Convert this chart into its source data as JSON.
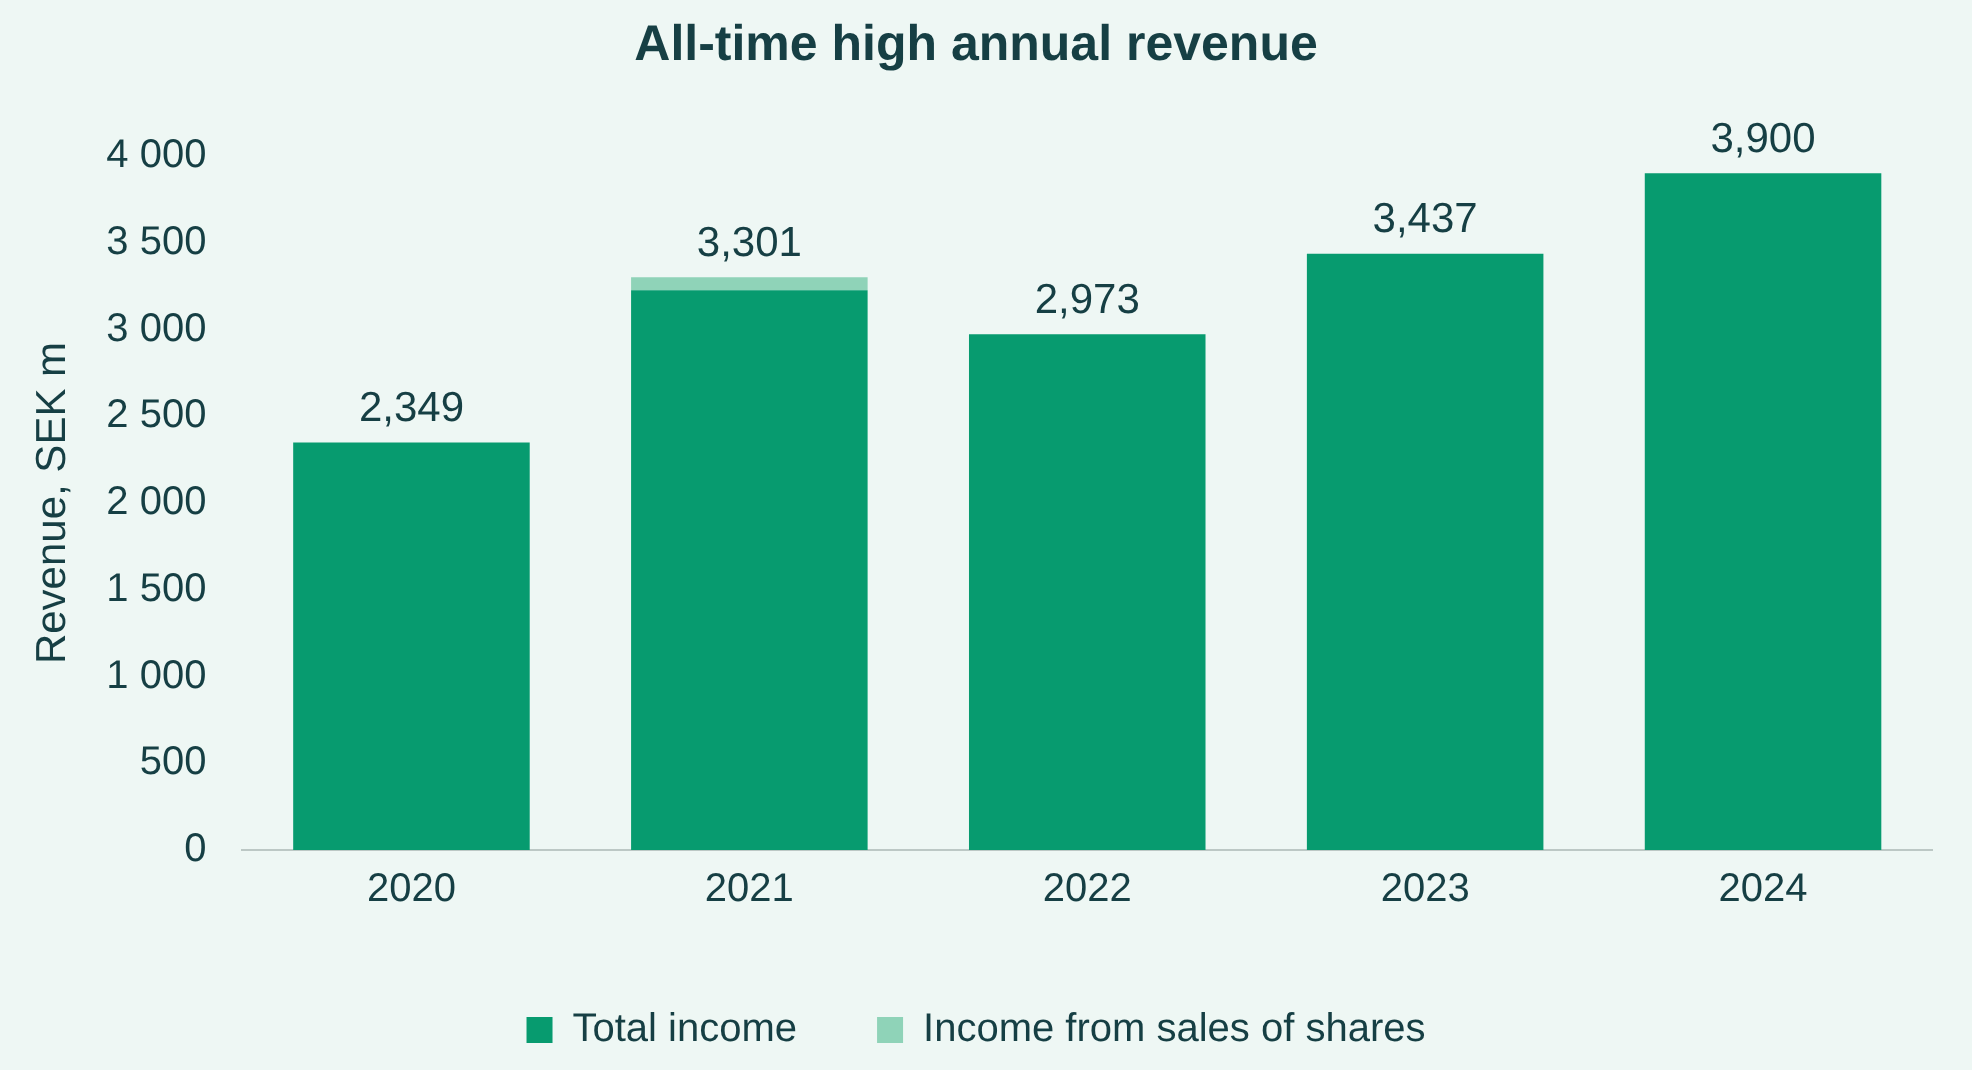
{
  "chart_data": {
    "type": "bar",
    "title": "All-time high annual revenue",
    "ylabel": "Revenue, SEK m",
    "categories": [
      "2020",
      "2021",
      "2022",
      "2023",
      "2024"
    ],
    "series": [
      {
        "name": "Total income",
        "color": "#079b6f",
        "values": [
          2349,
          3226,
          2973,
          3437,
          3900
        ]
      },
      {
        "name": "Income from sales of shares",
        "color": "#8fd3b8",
        "values": [
          null,
          75,
          null,
          null,
          null
        ]
      }
    ],
    "stacked": true,
    "totals": [
      "2,349",
      "3,301",
      "2,973",
      "3,437",
      "3,900"
    ],
    "ylim": [
      0,
      4000
    ],
    "yticks": [
      0,
      500,
      {
        "value": 1000,
        "label": "1 000"
      },
      {
        "value": 1500,
        "label": "1 500"
      },
      {
        "value": 2000,
        "label": "2 000"
      },
      {
        "value": 2500,
        "label": "2 500"
      },
      {
        "value": 3000,
        "label": "3 000"
      },
      {
        "value": 3500,
        "label": "3 500"
      },
      {
        "value": 4000,
        "label": "4 000"
      }
    ],
    "grid": false,
    "legend": "bottom"
  }
}
